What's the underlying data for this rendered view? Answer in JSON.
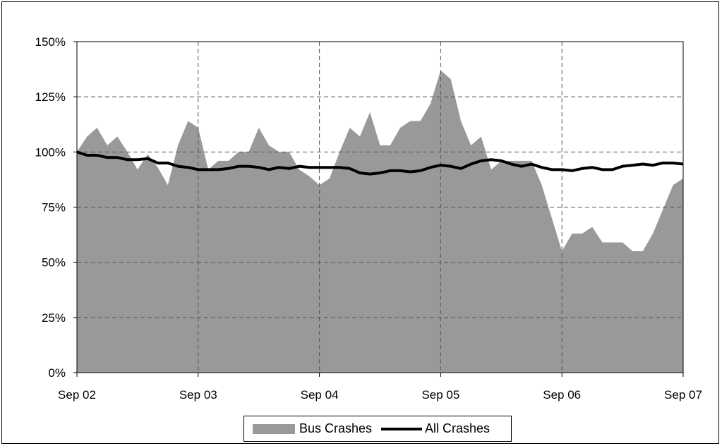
{
  "chart_data": {
    "type": "area",
    "x_tick_labels": [
      "Sep 02",
      "Sep 03",
      "Sep 04",
      "Sep 05",
      "Sep 06",
      "Sep 07"
    ],
    "y_tick_labels": [
      "0%",
      "25%",
      "50%",
      "75%",
      "100%",
      "125%",
      "150%"
    ],
    "ylim": [
      0,
      150
    ],
    "y_unit": "percent",
    "grid": true,
    "legend_position": "bottom",
    "series": [
      {
        "name": "Bus Crashes",
        "kind": "area",
        "color": "#999999",
        "values": [
          100,
          107,
          111,
          103,
          107,
          100,
          92,
          99,
          93,
          85,
          103,
          114,
          111,
          92,
          96,
          96,
          100,
          100,
          111,
          103,
          100,
          100,
          92,
          89,
          85,
          88,
          100,
          111,
          107,
          118,
          103,
          103,
          111,
          114,
          114,
          122,
          137,
          133,
          114,
          103,
          107,
          92,
          96,
          96,
          96,
          96,
          85,
          70,
          55,
          63,
          63,
          66,
          59,
          59,
          59,
          55,
          55,
          63,
          74,
          85,
          88
        ]
      },
      {
        "name": "All Crashes",
        "kind": "line",
        "color": "#000000",
        "values": [
          100,
          98.5,
          98.5,
          97.5,
          97.5,
          96.5,
          96.5,
          97,
          95,
          95,
          93.5,
          93,
          92,
          92,
          92,
          92.5,
          93.5,
          93.5,
          93,
          92,
          93,
          92.5,
          93.5,
          93,
          93,
          93,
          93,
          92.5,
          90.5,
          90,
          90.5,
          91.5,
          91.5,
          91,
          91.5,
          93,
          94,
          93.5,
          92.5,
          94.5,
          96,
          96.5,
          96,
          94.5,
          93.5,
          94.5,
          93,
          92,
          92,
          91.5,
          92.5,
          93,
          92,
          92,
          93.5,
          94,
          94.5,
          94,
          95,
          95,
          94.5
        ]
      }
    ]
  }
}
